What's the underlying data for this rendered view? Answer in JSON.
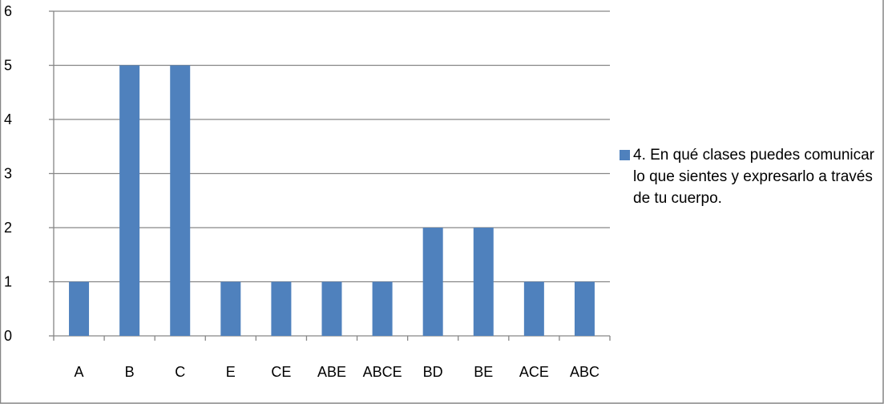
{
  "chart_data": {
    "type": "bar",
    "title": "",
    "xlabel": "",
    "ylabel": "",
    "categories": [
      "A",
      "B",
      "C",
      "E",
      "CE",
      "ABE",
      "ABCE",
      "BD",
      "BE",
      "ACE",
      "ABC"
    ],
    "series": [
      {
        "name": "4. En qué clases puedes comunicar lo que sientes y expresarlo a través de tu cuerpo.",
        "values": [
          1,
          5,
          5,
          1,
          1,
          1,
          1,
          2,
          2,
          1,
          1
        ],
        "color": "#4f81bd"
      }
    ],
    "ylim": [
      0,
      6
    ],
    "yticks": [
      "0",
      "1",
      "2",
      "3",
      "4",
      "5",
      "6"
    ],
    "grid": true,
    "legend_position": "right"
  },
  "colors": {
    "bar": "#4f81bd",
    "gridline": "#868686",
    "axis": "#868686",
    "frame": "#868686",
    "text": "#000000"
  }
}
